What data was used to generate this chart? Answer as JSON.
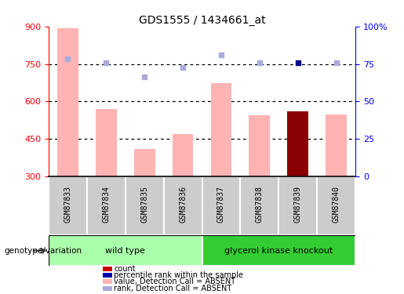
{
  "title": "GDS1555 / 1434661_at",
  "samples": [
    "GSM87833",
    "GSM87834",
    "GSM87835",
    "GSM87836",
    "GSM87837",
    "GSM87838",
    "GSM87839",
    "GSM87840"
  ],
  "bar_values": [
    893,
    570,
    410,
    468,
    672,
    545,
    560,
    548
  ],
  "bar_colors": [
    "#ffb3b3",
    "#ffb3b3",
    "#ffb3b3",
    "#ffb3b3",
    "#ffb3b3",
    "#ffb3b3",
    "#8b0000",
    "#ffb3b3"
  ],
  "rank_dots_left_scale": [
    770,
    754,
    700,
    735,
    785,
    756,
    754,
    754
  ],
  "rank_dot_colors": [
    "#aaaadd",
    "#aaaadd",
    "#aaaadd",
    "#aaaadd",
    "#aaaadd",
    "#aaaadd",
    "#00008b",
    "#aaaadd"
  ],
  "ylim_left": [
    300,
    900
  ],
  "ylim_right": [
    0,
    100
  ],
  "yticks_left": [
    300,
    450,
    600,
    750,
    900
  ],
  "yticks_right": [
    0,
    25,
    50,
    75,
    100
  ],
  "grid_vals": [
    450,
    600,
    750
  ],
  "wild_type_indices": [
    0,
    1,
    2,
    3
  ],
  "knockout_indices": [
    4,
    5,
    6,
    7
  ],
  "wild_type_label": "wild type",
  "knockout_label": "glycerol kinase knockout",
  "genotype_label": "genotype/variation",
  "wt_color_light": "#b3ffb3",
  "wt_color_dark": "#66dd66",
  "ko_color_light": "#44ee44",
  "legend_items": [
    {
      "color": "#cc0000",
      "label": "count"
    },
    {
      "color": "#0000aa",
      "label": "percentile rank within the sample"
    },
    {
      "color": "#ffb3b3",
      "label": "value, Detection Call = ABSENT"
    },
    {
      "color": "#aaaadd",
      "label": "rank, Detection Call = ABSENT"
    }
  ],
  "bar_bottom": 300,
  "bar_width": 0.55,
  "dot_size": 5
}
